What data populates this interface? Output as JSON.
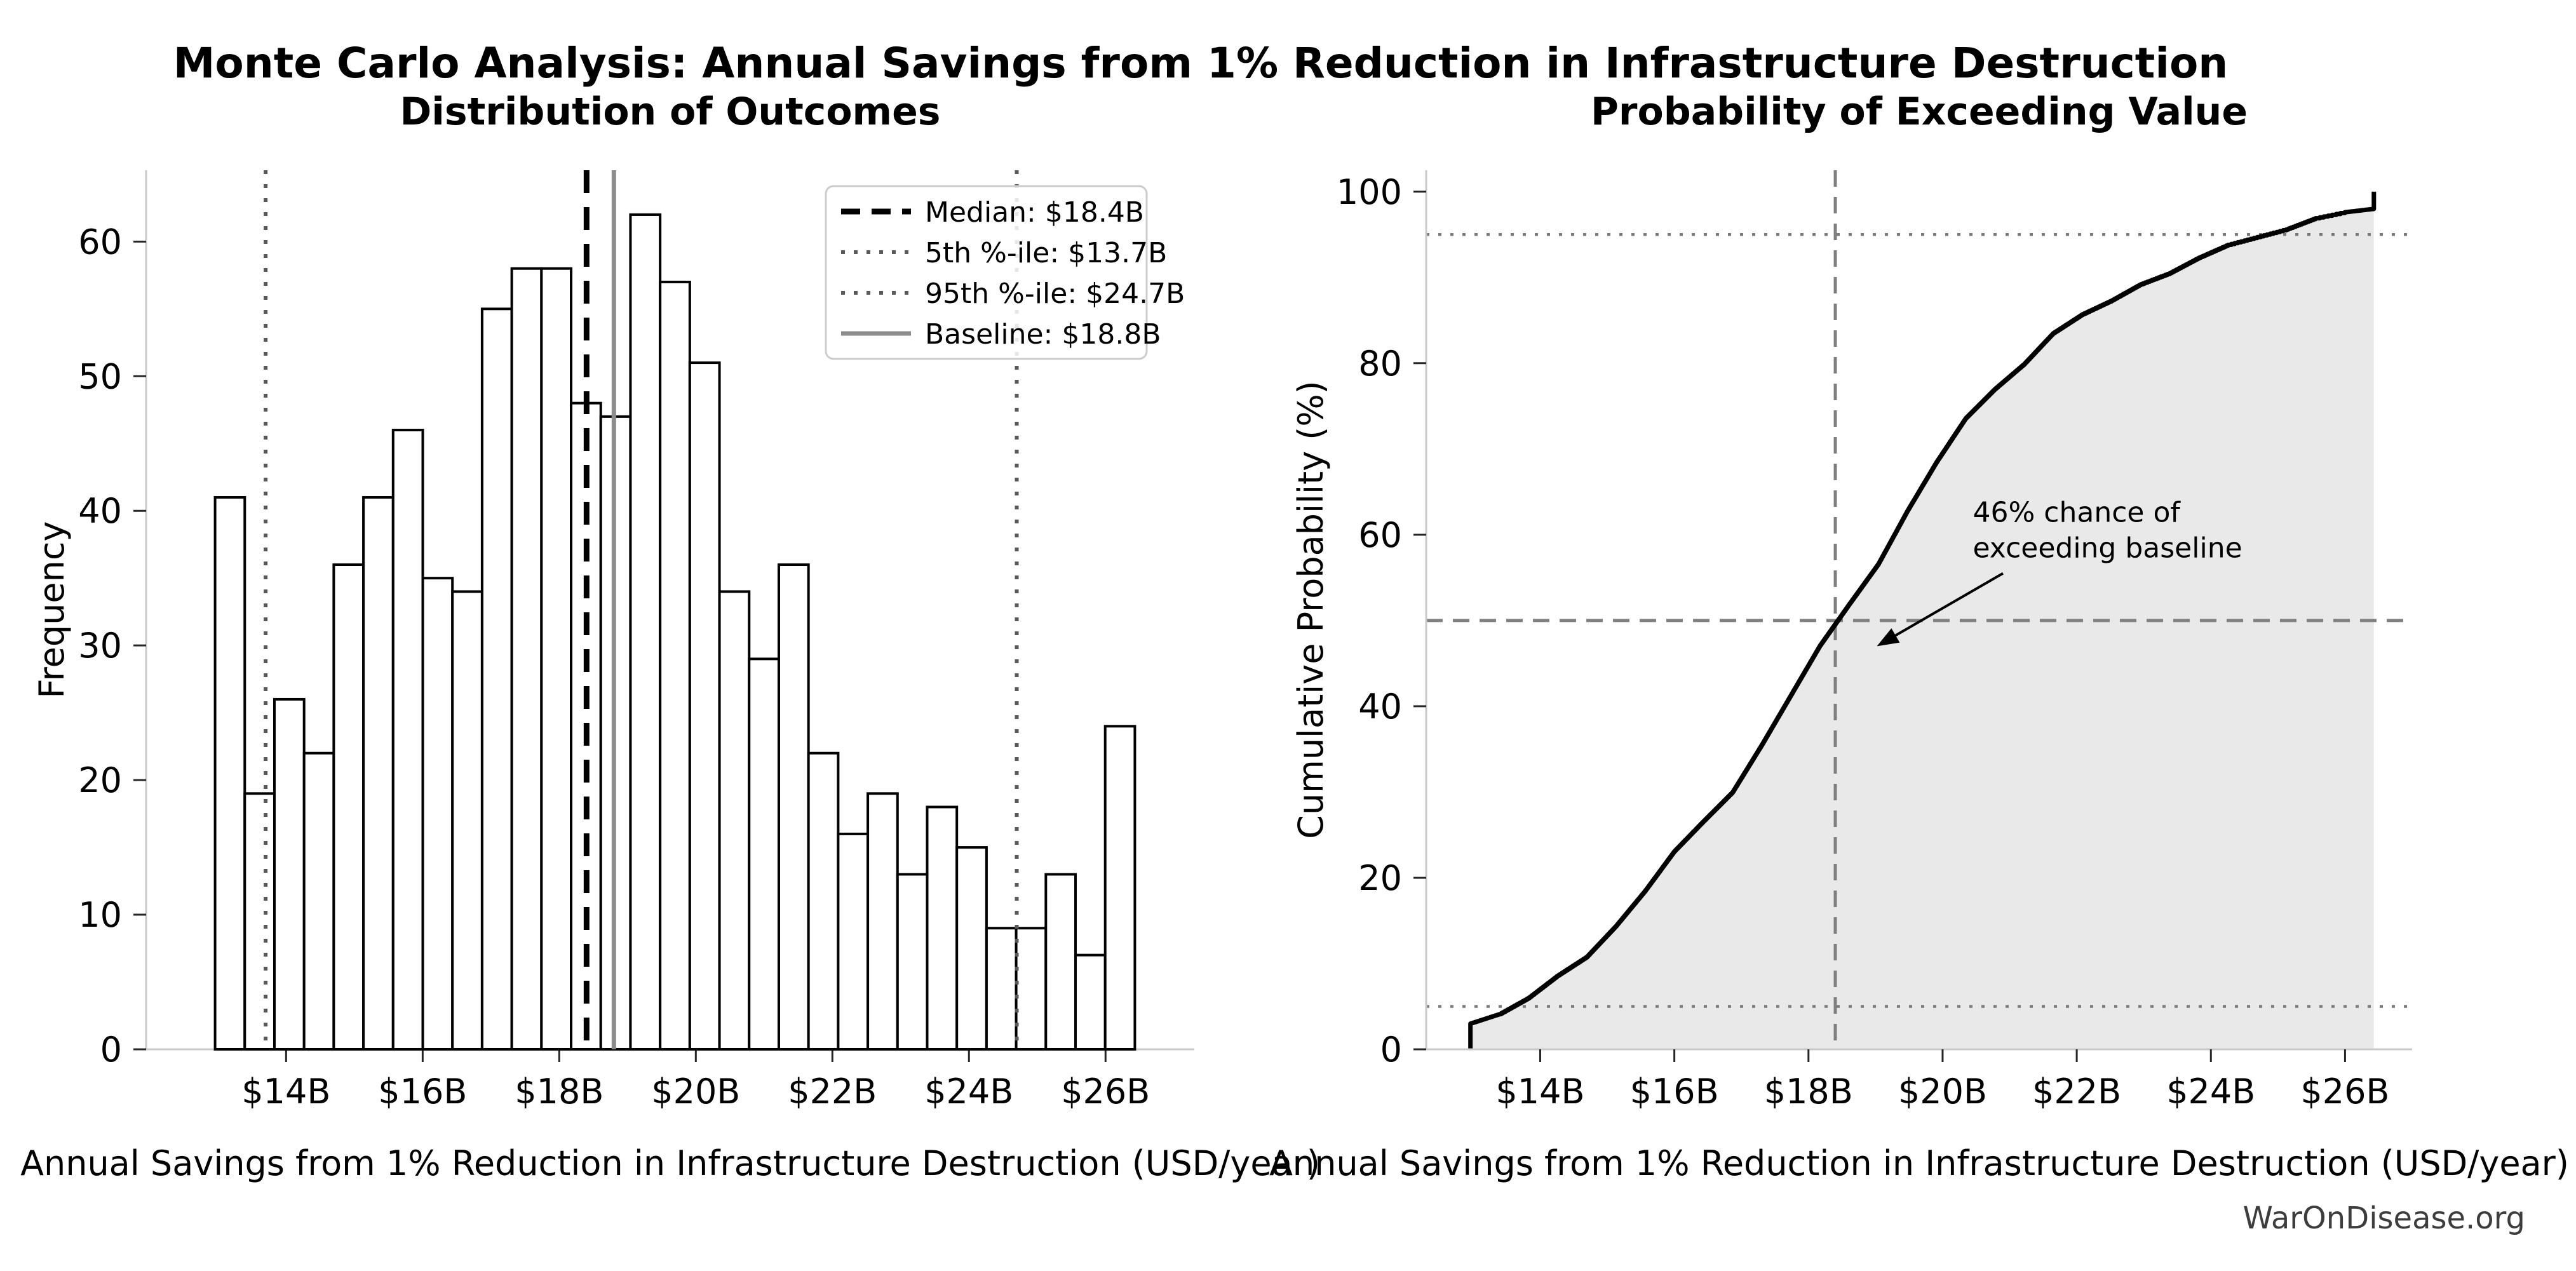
{
  "page": {
    "suptitle": "Monte Carlo Analysis: Annual Savings from 1% Reduction in Infrastructure Destruction",
    "watermark": "WarOnDisease.org",
    "background": "#ffffff"
  },
  "colors": {
    "bar_fill": "#ffffff",
    "bar_edge": "#000000",
    "median_line": "#000000",
    "percentile_line": "#595959",
    "baseline_line": "#8c8c8c",
    "cdf_line": "#000000",
    "cdf_fill": "#e9e9e9",
    "ref_dashed": "#808080",
    "ref_dotted": "#7a7a7a",
    "spine": "#c9c9c9",
    "tick_mark": "#262626",
    "legend_border": "#cccccc",
    "legend_fill": "rgba(255,255,255,0.85)"
  },
  "chart_data": [
    {
      "type": "bar",
      "role": "histogram",
      "title": "Distribution of Outcomes",
      "xlabel": "Annual Savings from 1% Reduction in Infrastructure Destruction (USD/year)",
      "ylabel": "Frequency",
      "bin_start": 12.96,
      "bin_width": 0.4345,
      "values": [
        41,
        19,
        26,
        22,
        36,
        41,
        46,
        35,
        34,
        55,
        58,
        58,
        48,
        47,
        62,
        57,
        51,
        34,
        29,
        36,
        22,
        16,
        19,
        13,
        18,
        15,
        9,
        9,
        13,
        7,
        24
      ],
      "xlim": [
        11.95,
        27.3
      ],
      "ylim": [
        0,
        65.3
      ],
      "xticks": [
        14,
        16,
        18,
        20,
        22,
        24,
        26
      ],
      "xtick_labels": [
        "$14B",
        "$16B",
        "$18B",
        "$20B",
        "$22B",
        "$24B",
        "$26B"
      ],
      "yticks": [
        0,
        10,
        20,
        30,
        40,
        50,
        60
      ],
      "grid": false,
      "ref_lines": [
        {
          "value": 13.7,
          "style": "dotted",
          "color_key": "percentile_line",
          "width": 6
        },
        {
          "value": 24.7,
          "style": "dotted",
          "color_key": "percentile_line",
          "width": 6
        },
        {
          "value": 18.4,
          "style": "dashed",
          "color_key": "median_line",
          "width": 9
        },
        {
          "value": 18.8,
          "style": "solid",
          "color_key": "baseline_line",
          "width": 7
        }
      ]
    },
    {
      "type": "line",
      "role": "ecdf",
      "title": "Probability of Exceeding Value",
      "xlabel": "Annual Savings from 1% Reduction in Infrastructure Destruction (USD/year)",
      "ylabel": "Cumulative Probability (%)",
      "xlim": [
        12.3,
        27.0
      ],
      "ylim": [
        0,
        102.5
      ],
      "xticks": [
        14,
        16,
        18,
        20,
        22,
        24,
        26
      ],
      "xtick_labels": [
        "$14B",
        "$16B",
        "$18B",
        "$20B",
        "$22B",
        "$24B",
        "$26B"
      ],
      "yticks": [
        0,
        20,
        40,
        60,
        80,
        100
      ],
      "curve_bin_start": 12.96,
      "curve_bin_width": 0.4345,
      "bin_counts": [
        41,
        19,
        26,
        22,
        36,
        41,
        46,
        35,
        34,
        55,
        58,
        58,
        48,
        47,
        62,
        57,
        51,
        34,
        29,
        36,
        22,
        16,
        19,
        13,
        18,
        15,
        9,
        9,
        13,
        7,
        24
      ],
      "cumulative_percent": [
        0,
        4.1,
        6.0,
        8.6,
        10.8,
        14.4,
        18.5,
        23.1,
        26.6,
        30.0,
        35.5,
        41.3,
        47.1,
        51.9,
        56.6,
        62.8,
        68.5,
        73.6,
        77.0,
        79.9,
        83.5,
        85.7,
        87.3,
        89.2,
        90.5,
        92.3,
        93.8,
        94.7,
        95.6,
        96.9,
        97.6,
        100
      ],
      "start_jump_percent": 3.0,
      "end_jump_percent": 2.0,
      "hlines": [
        {
          "value": 50,
          "style": "dashed"
        },
        {
          "value": 5,
          "style": "dotted"
        },
        {
          "value": 95,
          "style": "dotted"
        }
      ],
      "vlines": [
        {
          "value": 18.4,
          "style": "dashed"
        }
      ],
      "annotation": {
        "line1": "46% chance of",
        "line2": "exceeding baseline",
        "text_x": 20.45,
        "text_y": 61.5,
        "arrow_from": [
          20.9,
          55.5
        ],
        "arrow_to": [
          19.02,
          47.0
        ]
      }
    }
  ],
  "legend": {
    "items": [
      {
        "label": "Median: $18.4B",
        "style": "dashed",
        "color_key": "median_line"
      },
      {
        "label": "5th %-ile: $13.7B",
        "style": "dotted",
        "color_key": "percentile_line"
      },
      {
        "label": "95th %-ile: $24.7B",
        "style": "dotted",
        "color_key": "percentile_line"
      },
      {
        "label": "Baseline: $18.8B",
        "style": "solid",
        "color_key": "baseline_line"
      }
    ]
  }
}
